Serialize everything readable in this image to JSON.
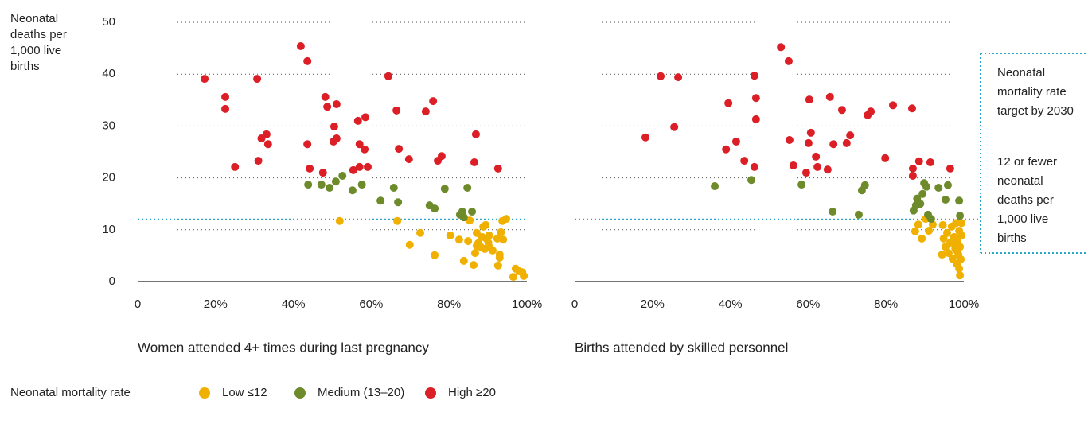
{
  "legend_title": "Neonatal mortality rate",
  "chart_data": [
    {
      "type": "scatter",
      "ylabel": "Neonatal deaths per 1,000 live births",
      "xlabel": "Women attended 4+ times during last pregnancy",
      "xlim": [
        0,
        100
      ],
      "xticks": [
        0,
        {
          "value": 20,
          "label": "20%"
        },
        {
          "value": 40,
          "label": "40%"
        },
        {
          "value": 60,
          "label": "60%"
        },
        {
          "value": 80,
          "label": "80%"
        },
        {
          "value": 100,
          "label": "100%"
        }
      ],
      "ylim": [
        0,
        50
      ],
      "yticks": [
        0,
        10,
        20,
        30,
        40,
        50
      ],
      "grid": true,
      "target": 12,
      "series": [
        {
          "name": "Low ≤12",
          "color": "#f0b000",
          "x": [
            51.9,
            66.7,
            69.9,
            72.6,
            76.3,
            80.3,
            82.6,
            83.8,
            84.9,
            85.3,
            86.3,
            86.7,
            87.1,
            87.5,
            88.1,
            88.5,
            88.8,
            89.2,
            89.4,
            89.6,
            90.1,
            90.3,
            91.2,
            92.4,
            92.6,
            93.0,
            93.0,
            93.3,
            93.7,
            93.9,
            94.7,
            96.5,
            97.1,
            98.0,
            98.8,
            99.2,
            87.1,
            90.3
          ],
          "values": [
            11.7,
            11.7,
            7.1,
            9.4,
            5.1,
            8.9,
            8.1,
            4.0,
            7.8,
            11.8,
            3.2,
            5.5,
            9.4,
            7.4,
            6.7,
            8.6,
            10.6,
            6.3,
            10.9,
            8.3,
            7.5,
            8.9,
            6.0,
            8.3,
            3.1,
            5.2,
            4.6,
            9.5,
            11.7,
            8.1,
            12.1,
            0.9,
            2.5,
            2.0,
            1.8,
            1.1,
            6.9,
            6.7
          ]
        },
        {
          "name": "Medium (13–20)",
          "color": "#6e8b2c",
          "x": [
            43.8,
            47.2,
            49.3,
            50.9,
            52.6,
            55.2,
            57.6,
            62.4,
            65.8,
            66.9,
            75.0,
            76.3,
            78.9,
            82.8,
            83.4,
            83.8,
            84.7,
            85.9
          ],
          "values": [
            18.7,
            18.7,
            18.1,
            19.3,
            20.4,
            17.6,
            18.7,
            15.6,
            18.1,
            15.3,
            14.7,
            14.1,
            17.9,
            12.9,
            13.5,
            12.4,
            18.1,
            13.5
          ]
        },
        {
          "name": "High ≥20",
          "color": "#dc1f26",
          "x": [
            17.2,
            22.5,
            22.5,
            25.0,
            30.7,
            31.0,
            31.8,
            33.1,
            33.5,
            41.9,
            43.6,
            43.6,
            44.2,
            51.1,
            47.6,
            48.2,
            48.7,
            51.1,
            50.5,
            50.3,
            55.4,
            56.6,
            57.0,
            57.0,
            58.5,
            58.3,
            59.1,
            64.4,
            66.5,
            67.1,
            69.7,
            74.0,
            75.9,
            77.1,
            78.1,
            86.9,
            86.5,
            92.6
          ],
          "values": [
            39.1,
            35.6,
            33.3,
            22.1,
            39.1,
            23.3,
            27.6,
            28.4,
            26.5,
            45.4,
            42.5,
            26.5,
            21.8,
            27.6,
            21.0,
            35.6,
            33.7,
            34.2,
            29.9,
            27.0,
            21.5,
            31.0,
            26.5,
            22.1,
            31.7,
            25.5,
            22.1,
            39.6,
            33.0,
            25.6,
            23.6,
            32.8,
            34.8,
            23.3,
            24.2,
            28.4,
            23.0,
            21.8
          ]
        }
      ]
    },
    {
      "type": "scatter",
      "xlabel": "Births attended by skilled personnel",
      "xlim": [
        0,
        100
      ],
      "xticks": [
        0,
        {
          "value": 20,
          "label": "20%"
        },
        {
          "value": 40,
          "label": "40%"
        },
        {
          "value": 60,
          "label": "60%"
        },
        {
          "value": 80,
          "label": "80%"
        },
        {
          "value": 100,
          "label": "100%"
        }
      ],
      "ylim": [
        0,
        50
      ],
      "yticks": [
        0,
        10,
        20,
        30,
        40,
        50
      ],
      "grid": true,
      "target": 12,
      "annotations": [
        "Neonatal mortality rate target by 2030",
        "12 or fewer neonatal deaths per 1,000 live births"
      ],
      "series": [
        {
          "name": "Low ≤12",
          "color": "#f0b000",
          "x": [
            87.5,
            88.3,
            89.2,
            90.2,
            91.0,
            92.0,
            94.6,
            94.4,
            94.8,
            95.3,
            95.7,
            96.1,
            96.5,
            96.9,
            97.1,
            97.5,
            97.8,
            98.0,
            98.2,
            98.4,
            98.6,
            98.8,
            98.8,
            99.0,
            99.0,
            99.2,
            99.4,
            99.4,
            98.2,
            97.3
          ],
          "values": [
            9.7,
            11.0,
            8.3,
            12.1,
            9.8,
            11.0,
            10.9,
            5.2,
            8.3,
            6.7,
            9.4,
            5.5,
            7.5,
            10.6,
            4.4,
            8.6,
            6.4,
            11.3,
            3.4,
            7.8,
            5.2,
            2.5,
            9.8,
            1.2,
            6.7,
            4.3,
            8.9,
            11.3,
            6.0,
            7.5
          ]
        },
        {
          "name": "Medium (13–20)",
          "color": "#6e8b2c",
          "x": [
            36.0,
            45.4,
            58.3,
            66.3,
            73.0,
            73.8,
            74.6,
            87.1,
            87.7,
            88.0,
            88.8,
            89.4,
            89.8,
            90.4,
            90.8,
            91.6,
            93.5,
            95.3,
            95.9,
            98.8,
            99.0
          ],
          "values": [
            18.4,
            19.6,
            18.7,
            13.5,
            12.9,
            17.6,
            18.6,
            13.7,
            14.7,
            16.0,
            15.0,
            16.9,
            19.0,
            18.3,
            12.9,
            12.1,
            18.1,
            15.8,
            18.6,
            15.6,
            12.7
          ]
        },
        {
          "name": "High ≥20",
          "color": "#dc1f26",
          "x": [
            18.2,
            22.1,
            26.6,
            25.6,
            39.5,
            38.9,
            41.5,
            43.6,
            46.2,
            46.2,
            46.6,
            46.6,
            53.0,
            55.0,
            55.2,
            56.2,
            60.3,
            60.7,
            60.1,
            59.5,
            62.0,
            62.4,
            65.6,
            65.0,
            66.5,
            68.7,
            69.9,
            70.8,
            75.3,
            76.1,
            79.8,
            81.8,
            86.7,
            86.9,
            86.9,
            88.5,
            91.4,
            96.5
          ],
          "values": [
            27.8,
            39.6,
            39.4,
            29.8,
            34.4,
            25.5,
            27.0,
            23.3,
            22.1,
            39.7,
            35.4,
            31.3,
            45.2,
            42.5,
            27.3,
            22.4,
            35.1,
            28.7,
            26.7,
            21.0,
            24.1,
            22.1,
            35.6,
            21.6,
            26.5,
            33.1,
            26.7,
            28.2,
            32.1,
            32.8,
            23.8,
            34.0,
            33.4,
            21.8,
            20.4,
            23.2,
            23.0,
            21.8
          ]
        }
      ]
    }
  ]
}
